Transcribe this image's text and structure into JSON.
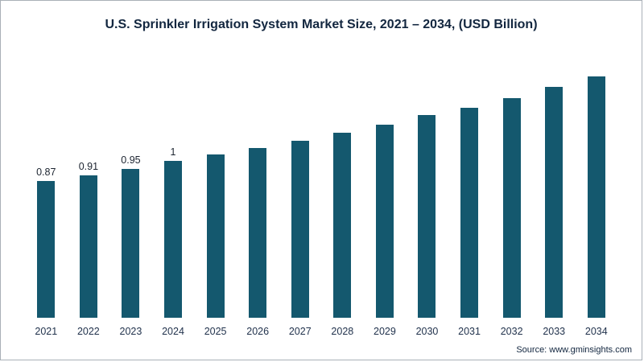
{
  "header": {
    "title": "U.S. Sprinkler Irrigation System Market Size, 2021 – 2034, (USD Billion)"
  },
  "footer": {
    "source": "Source: www.gminsights.com"
  },
  "chart_data": {
    "type": "bar",
    "title": "U.S. Sprinkler Irrigation System Market Size, 2021 – 2034, (USD Billion)",
    "categories": [
      "2021",
      "2022",
      "2023",
      "2024",
      "2025",
      "2026",
      "2027",
      "2028",
      "2029",
      "2030",
      "2031",
      "2032",
      "2033",
      "2034"
    ],
    "values": [
      0.87,
      0.91,
      0.95,
      1.0,
      1.04,
      1.08,
      1.13,
      1.18,
      1.23,
      1.29,
      1.34,
      1.4,
      1.47,
      1.54
    ],
    "bar_labels": [
      "0.87",
      "0.91",
      "0.95",
      "1",
      "",
      "",
      "",
      "",
      "",
      "",
      "",
      "",
      "",
      ""
    ],
    "bar_color": "#14586e",
    "xlabel": "",
    "ylabel": "",
    "ylim": [
      0,
      1.6
    ],
    "grid": false,
    "legend": false
  }
}
